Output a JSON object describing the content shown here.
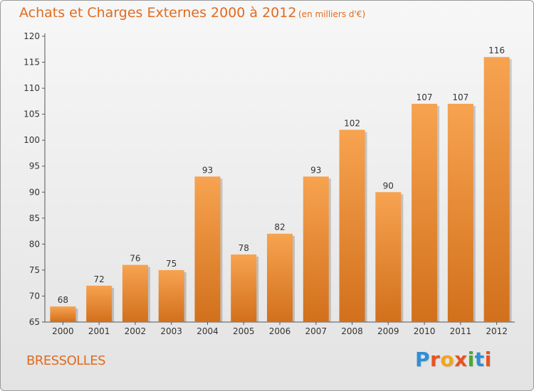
{
  "title": "Achats et Charges Externes 2000 à 2012",
  "subtitle": "(en milliers d'€)",
  "commune": "BRESSOLLES",
  "logo_text": "Proxiti",
  "colors": {
    "accent": "#e06b1f",
    "bar_light": "#f7a350",
    "bar_dark": "#d2701c",
    "logo": [
      "#2f8fd6",
      "#e8531f",
      "#f2a51a",
      "#e8531f",
      "#4aa832",
      "#2f8fd6",
      "#e8531f"
    ]
  },
  "chart_data": {
    "type": "bar",
    "categories": [
      "2000",
      "2001",
      "2002",
      "2003",
      "2004",
      "2005",
      "2006",
      "2007",
      "2008",
      "2009",
      "2010",
      "2011",
      "2012"
    ],
    "values": [
      68,
      72,
      76,
      75,
      93,
      78,
      82,
      93,
      102,
      90,
      107,
      107,
      116
    ],
    "ylim": [
      65,
      120
    ],
    "yticks": [
      65,
      70,
      75,
      80,
      85,
      90,
      95,
      100,
      105,
      110,
      115,
      120
    ],
    "grid": false,
    "data_labels": true
  }
}
